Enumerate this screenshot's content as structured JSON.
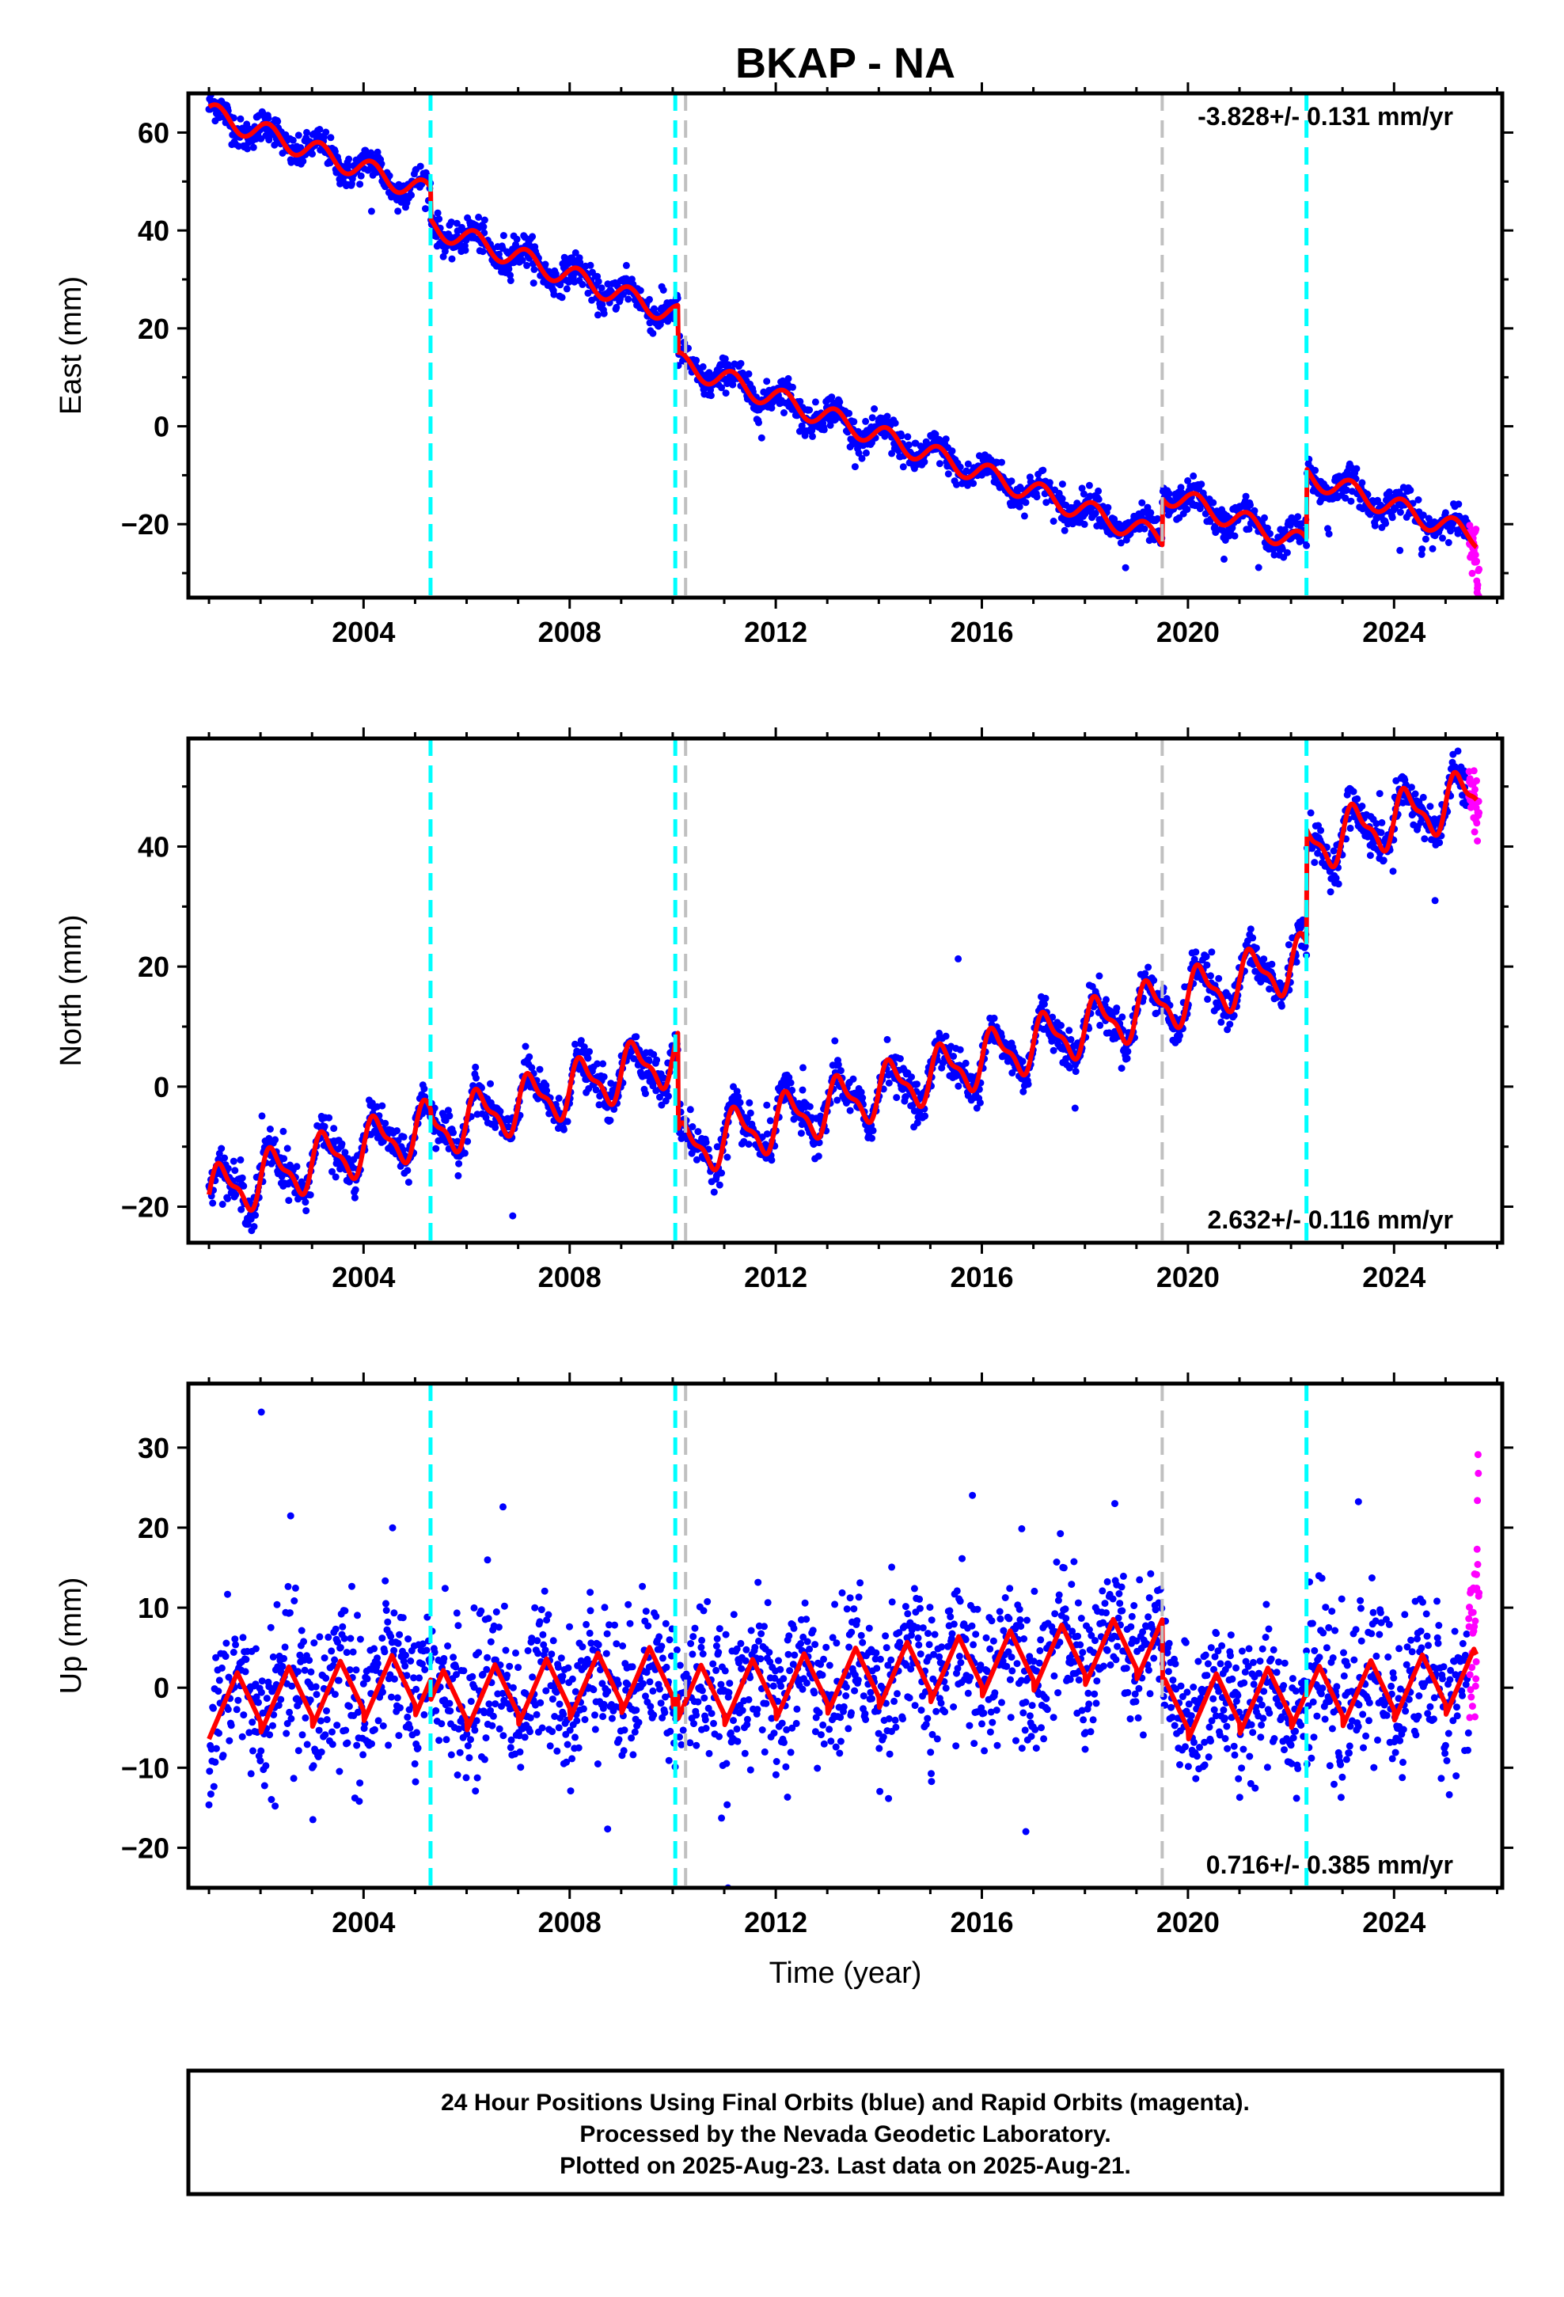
{
  "title": "BKAP - NA",
  "colors": {
    "final_orbits": "#0000ff",
    "rapid_orbits": "#ff00ff",
    "model": "#ff0000",
    "equipment_change": "#00ffff",
    "earthquake": "#c0c0c0",
    "frame": "#000000"
  },
  "chart_data": [
    {
      "type": "scatter",
      "component": "east",
      "ylabel": "East (mm)",
      "xlim": [
        2000.6,
        2026.1
      ],
      "ylim": [
        -35,
        68
      ],
      "xticks": [
        2004,
        2008,
        2012,
        2016,
        2020,
        2024
      ],
      "yticks": [
        -20,
        0,
        20,
        40,
        60
      ],
      "rate_label": "-3.828+/- 0.131 mm/yr",
      "rate_position": "top-right",
      "rate": -3.828,
      "annual_amplitude": 2.2,
      "noise": 1.6,
      "segments": [
        {
          "t0": 2001.0,
          "t1": 2005.3,
          "y0": 64.0
        },
        {
          "t0": 2005.3,
          "t1": 2010.1,
          "y0": 41.0
        },
        {
          "t0": 2010.1,
          "t1": 2019.5,
          "y0": 13.0
        },
        {
          "t0": 2019.5,
          "t1": 2022.3,
          "y0": -13.5
        },
        {
          "t0": 2022.3,
          "t1": 2025.6,
          "y0": -10.0
        }
      ],
      "rapid_range": [
        2025.45,
        2025.65
      ]
    },
    {
      "type": "scatter",
      "component": "north",
      "ylabel": "North (mm)",
      "xlim": [
        2000.6,
        2026.1
      ],
      "ylim": [
        -26,
        58
      ],
      "xticks": [
        2004,
        2008,
        2012,
        2016,
        2020,
        2024
      ],
      "yticks": [
        -20,
        0,
        20,
        40
      ],
      "rate_label": "2.632+/- 0.116 mm/yr",
      "rate_position": "bottom-right",
      "rate": 2.632,
      "annual_amplitude": 4.0,
      "noise": 1.6,
      "segments": [
        {
          "t0": 2001.0,
          "t1": 2005.3,
          "y0": -18.0
        },
        {
          "t0": 2005.3,
          "t1": 2010.1,
          "y0": -7.5
        },
        {
          "t0": 2010.1,
          "t1": 2022.3,
          "y0": -11.0
        },
        {
          "t0": 2022.3,
          "t1": 2025.6,
          "y0": 40.0
        }
      ],
      "rapid_range": [
        2025.45,
        2025.65
      ]
    },
    {
      "type": "scatter",
      "component": "up",
      "ylabel": "Up (mm)",
      "xlabel": "Time (year)",
      "xlim": [
        2000.6,
        2026.1
      ],
      "ylim": [
        -25,
        38
      ],
      "xticks": [
        2004,
        2008,
        2012,
        2016,
        2020,
        2024
      ],
      "yticks": [
        -20,
        -10,
        0,
        10,
        20,
        30
      ],
      "rate_label": "0.716+/- 0.385 mm/yr",
      "rate_position": "bottom-right",
      "rate": 0.716,
      "annual_amplitude": 4.5,
      "noise": 4.5,
      "segments": [
        {
          "t0": 2001.0,
          "t1": 2005.3,
          "y0": -3.0
        },
        {
          "t0": 2005.3,
          "t1": 2010.1,
          "y0": -2.5
        },
        {
          "t0": 2010.1,
          "t1": 2019.5,
          "y0": -2.0
        },
        {
          "t0": 2019.5,
          "t1": 2022.3,
          "y0": -3.5
        },
        {
          "t0": 2022.3,
          "t1": 2025.6,
          "y0": -2.0
        }
      ],
      "rapid_range": [
        2025.45,
        2025.65
      ]
    }
  ],
  "event_lines": [
    {
      "year": 2005.3,
      "kind": "equipment_change"
    },
    {
      "year": 2010.05,
      "kind": "equipment_change"
    },
    {
      "year": 2010.25,
      "kind": "earthquake"
    },
    {
      "year": 2019.5,
      "kind": "earthquake"
    },
    {
      "year": 2022.3,
      "kind": "equipment_change"
    }
  ],
  "footer": {
    "line1": "24 Hour Positions Using Final Orbits (blue) and Rapid Orbits (magenta).",
    "line2": "Processed by the Nevada Geodetic Laboratory.",
    "line3": "Plotted on 2025-Aug-23. Last data on 2025-Aug-21."
  }
}
